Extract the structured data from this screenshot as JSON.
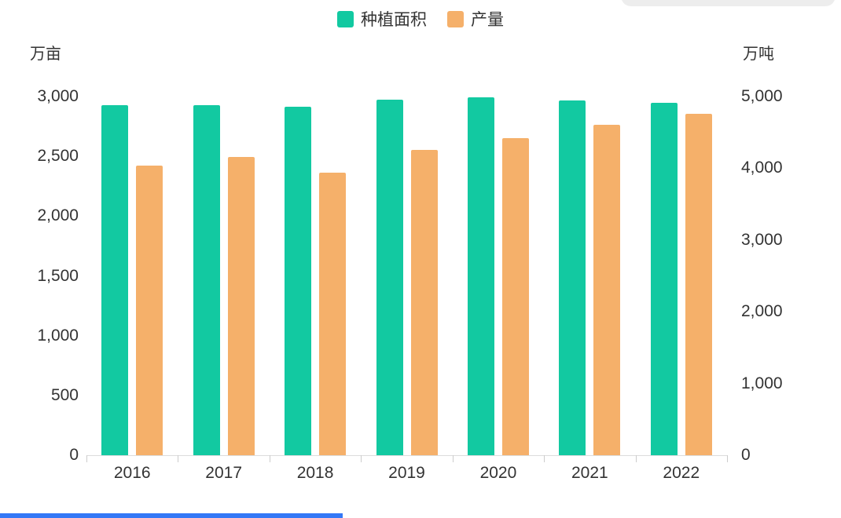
{
  "ui": {
    "accent_green": "#12C9A1",
    "accent_orange": "#F5B06A",
    "scroll_indicator_blue": "#3478F6"
  },
  "legend": {
    "items": [
      {
        "label": "种植面积",
        "color": "#12C9A1"
      },
      {
        "label": "产量",
        "color": "#F5B06A"
      }
    ]
  },
  "chart_data": {
    "type": "bar",
    "title": "",
    "legend_position": "top",
    "grid": false,
    "categories": [
      "2016",
      "2017",
      "2018",
      "2019",
      "2020",
      "2021",
      "2022"
    ],
    "series": [
      {
        "name": "种植面积",
        "axis": "left",
        "unit": "万亩",
        "color": "#12C9A1",
        "values": [
          2930,
          2930,
          2915,
          2975,
          2995,
          2965,
          2945
        ]
      },
      {
        "name": "产量",
        "axis": "right",
        "unit": "万吨",
        "color": "#F5B06A",
        "values": [
          4040,
          4160,
          3940,
          4255,
          4420,
          4605,
          4760
        ]
      }
    ],
    "left_axis": {
      "name": "万亩",
      "min": 0,
      "max": 3000,
      "tick_step": 500,
      "ticks": [
        "0",
        "500",
        "1,000",
        "1,500",
        "2,000",
        "2,500",
        "3,000"
      ]
    },
    "right_axis": {
      "name": "万吨",
      "min": 0,
      "max": 5000,
      "tick_step": 1000,
      "ticks": [
        "0",
        "1,000",
        "2,000",
        "3,000",
        "4,000",
        "5,000"
      ]
    }
  }
}
